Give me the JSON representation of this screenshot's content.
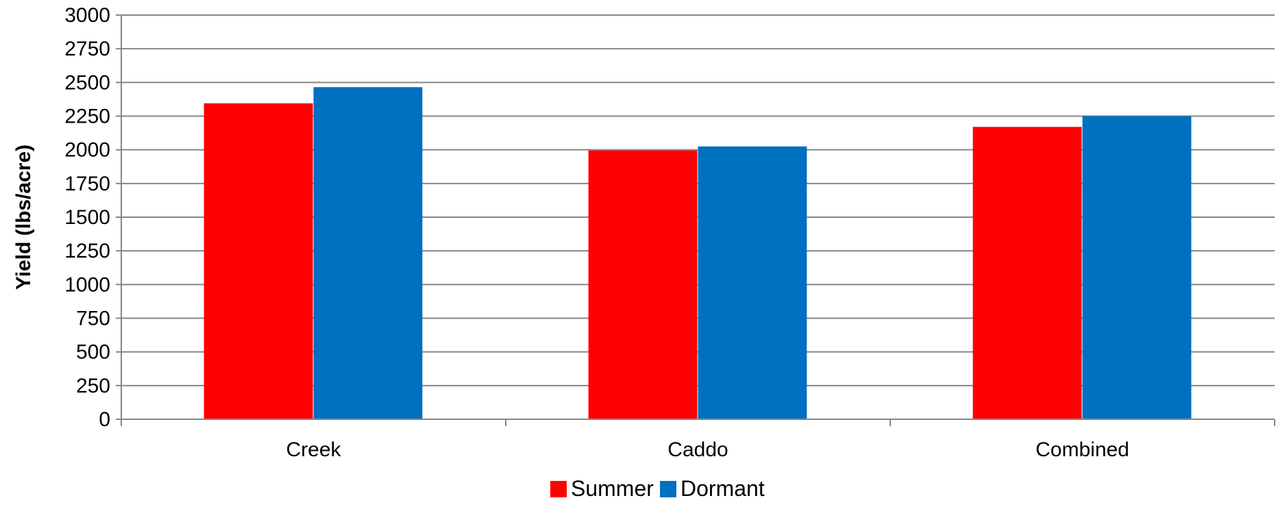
{
  "chart_data": {
    "type": "bar",
    "title": "",
    "xlabel": "",
    "ylabel": "Yield (lbs/acre)",
    "ylim": [
      0,
      3000
    ],
    "yticks": [
      0,
      250,
      500,
      750,
      1000,
      1250,
      1500,
      1750,
      2000,
      2250,
      2500,
      2750,
      3000
    ],
    "grid": true,
    "legend": "bottom-center",
    "categories": [
      "Creek",
      "Caddo",
      "Combined"
    ],
    "series": [
      {
        "name": "Summer",
        "color": "#ff0000",
        "values": [
          2345,
          1995,
          2170
        ]
      },
      {
        "name": "Dormant",
        "color": "#0070c0",
        "values": [
          2465,
          2025,
          2250
        ]
      }
    ]
  }
}
